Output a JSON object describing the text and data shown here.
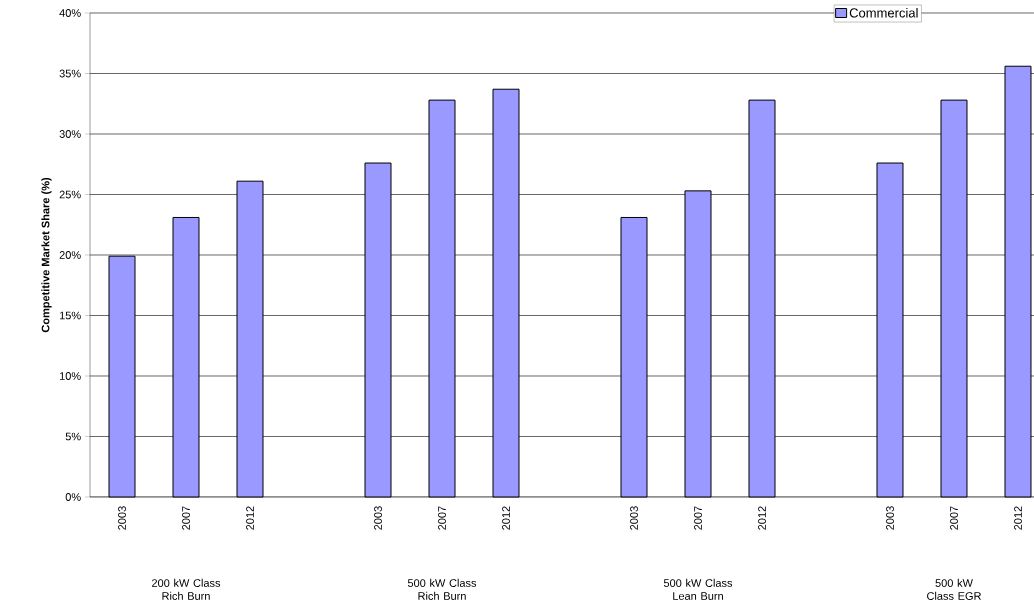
{
  "chart_data": {
    "type": "bar",
    "ylabel": "Competitive Market Share (%)",
    "categories": [
      "2003",
      "2007",
      "2012",
      null,
      "2003",
      "2007",
      "2012",
      null,
      "2003",
      "2007",
      "2012",
      null,
      "2003",
      "2007",
      "2012"
    ],
    "series": [
      {
        "name": "Commercial",
        "color": "#9999ff",
        "values": [
          19.9,
          23.1,
          26.1,
          null,
          27.6,
          32.8,
          33.7,
          null,
          23.1,
          25.3,
          32.8,
          null,
          27.6,
          32.8,
          35.6
        ]
      }
    ],
    "ylim": [
      0,
      40
    ],
    "yticks": [
      {
        "value": 0,
        "label": "0%"
      },
      {
        "value": 5,
        "label": "5%"
      },
      {
        "value": 10,
        "label": "10%"
      },
      {
        "value": 15,
        "label": "15%"
      },
      {
        "value": 20,
        "label": "20%"
      },
      {
        "value": 25,
        "label": "25%"
      },
      {
        "value": 30,
        "label": "30%"
      },
      {
        "value": 35,
        "label": "35%"
      },
      {
        "value": 40,
        "label": "40%"
      }
    ],
    "grid": "y",
    "legend": "top right",
    "annotations": [
      "200 kW Class Rich Burn",
      "500 kW Class Rich Burn",
      "500 kW Class Lean Burn",
      "500 kW Class EGR"
    ]
  }
}
